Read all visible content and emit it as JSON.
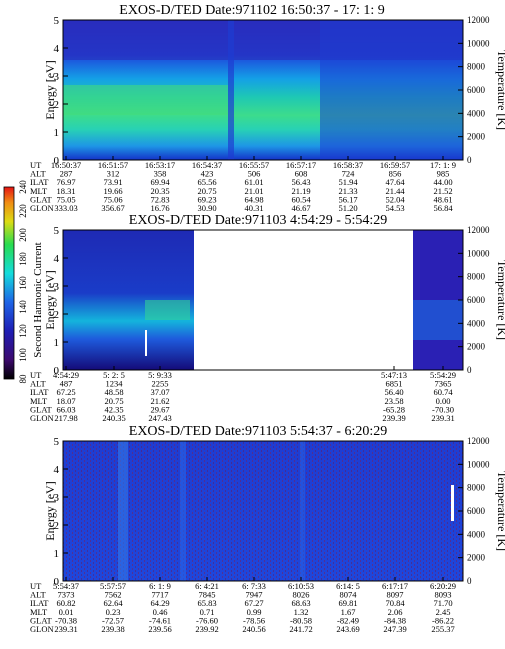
{
  "chart_data": [
    {
      "type": "heatmap",
      "title": "EXOS-D/TED   Date:971102  16:50:37 - 17: 1: 9",
      "ylabel": "Energy [eV]",
      "y2label": "Temperature [K]",
      "ylim": [
        0,
        5
      ],
      "y2lim": [
        0,
        12000
      ],
      "yticks": [
        "0",
        "1",
        "2",
        "3",
        "4",
        "5"
      ],
      "y2ticks": [
        "0",
        "2000",
        "4000",
        "6000",
        "8000",
        "10000",
        "12000"
      ],
      "row_labels": [
        "UT",
        "ALT",
        "ILAT",
        "MLT",
        "GLAT",
        "GLON"
      ],
      "columns": [
        [
          "16:50:37",
          "287",
          "76.97",
          "18.31",
          "75.05",
          "333.03"
        ],
        [
          "16:51:57",
          "312",
          "73.91",
          "19.66",
          "75.06",
          "356.67"
        ],
        [
          "16:53:17",
          "358",
          "69.94",
          "20.35",
          "72.83",
          "16.76"
        ],
        [
          "16:54:37",
          "423",
          "65.56",
          "20.75",
          "69.23",
          "30.90"
        ],
        [
          "16:55:57",
          "506",
          "61.01",
          "21.01",
          "64.98",
          "40.31"
        ],
        [
          "16:57:17",
          "608",
          "56.43",
          "21.19",
          "60.54",
          "46.67"
        ],
        [
          "16:58:37",
          "724",
          "51.94",
          "21.33",
          "56.17",
          "51.20"
        ],
        [
          "16:59:57",
          "856",
          "47.64",
          "21.44",
          "52.04",
          "54.53"
        ],
        [
          "17: 1: 9",
          "985",
          "44.00",
          "21.52",
          "48.61",
          "56.84"
        ]
      ]
    },
    {
      "type": "heatmap",
      "title": "EXOS-D/TED   Date:971103  4:54:29 - 5:54:29",
      "ylabel": "Energy [eV]",
      "y2label": "Temperature [K]",
      "ylim": [
        0,
        5
      ],
      "y2lim": [
        0,
        12000
      ],
      "yticks": [
        "0",
        "1",
        "2",
        "3",
        "4",
        "5"
      ],
      "y2ticks": [
        "0",
        "2000",
        "4000",
        "6000",
        "8000",
        "10000",
        "12000"
      ],
      "row_labels": [
        "UT",
        "ALT",
        "ILAT",
        "MLT",
        "GLAT",
        "GLON"
      ],
      "columns": [
        [
          "4:54:29",
          "487",
          "67.25",
          "18.07",
          "66.03",
          "217.98"
        ],
        [
          "5: 2: 5",
          "1234",
          "48.58",
          "20.75",
          "42.35",
          "240.35"
        ],
        [
          "5: 9:33",
          "2255",
          "37.07",
          "21.62",
          "29.67",
          "247.43"
        ],
        [
          "5:47:13",
          "6851",
          "56.40",
          "23.58",
          "-65.28",
          "239.39"
        ],
        [
          "5:54:29",
          "7365",
          "60.74",
          "0.00",
          "-70.30",
          "239.31"
        ]
      ],
      "colorbar": {
        "label": "Second Harmonic Current",
        "ticks": [
          "80",
          "100",
          "120",
          "140",
          "160",
          "180",
          "200",
          "220",
          "240"
        ]
      }
    },
    {
      "type": "heatmap",
      "title": "EXOS-D/TED   Date:971103  5:54:37 - 6:20:29",
      "ylabel": "Energy [eV]",
      "y2label": "Temperature [K]",
      "ylim": [
        0,
        5
      ],
      "y2lim": [
        0,
        12000
      ],
      "yticks": [
        "0",
        "1",
        "2",
        "3",
        "4",
        "5"
      ],
      "y2ticks": [
        "0",
        "2000",
        "4000",
        "6000",
        "8000",
        "10000",
        "12000"
      ],
      "row_labels": [
        "UT",
        "ALT",
        "ILAT",
        "MLT",
        "GLAT",
        "GLON"
      ],
      "columns": [
        [
          "5:54:37",
          "7373",
          "60.82",
          "0.01",
          "-70.38",
          "239.31"
        ],
        [
          "5:57:57",
          "7562",
          "62.64",
          "0.23",
          "-72.57",
          "239.38"
        ],
        [
          "6: 1: 9",
          "7717",
          "64.29",
          "0.46",
          "-74.61",
          "239.56"
        ],
        [
          "6: 4:21",
          "7845",
          "65.83",
          "0.71",
          "-76.60",
          "239.92"
        ],
        [
          "6: 7:33",
          "7947",
          "67.27",
          "0.99",
          "-78.56",
          "240.56"
        ],
        [
          "6:10:53",
          "8026",
          "68.63",
          "1.32",
          "-80.58",
          "241.72"
        ],
        [
          "6:14: 5",
          "8074",
          "69.81",
          "1.67",
          "-82.49",
          "243.69"
        ],
        [
          "6:17:17",
          "8097",
          "70.84",
          "2.06",
          "-84.38",
          "247.39"
        ],
        [
          "6:20:29",
          "8093",
          "71.70",
          "2.45",
          "-86.22",
          "255.37"
        ]
      ]
    }
  ]
}
